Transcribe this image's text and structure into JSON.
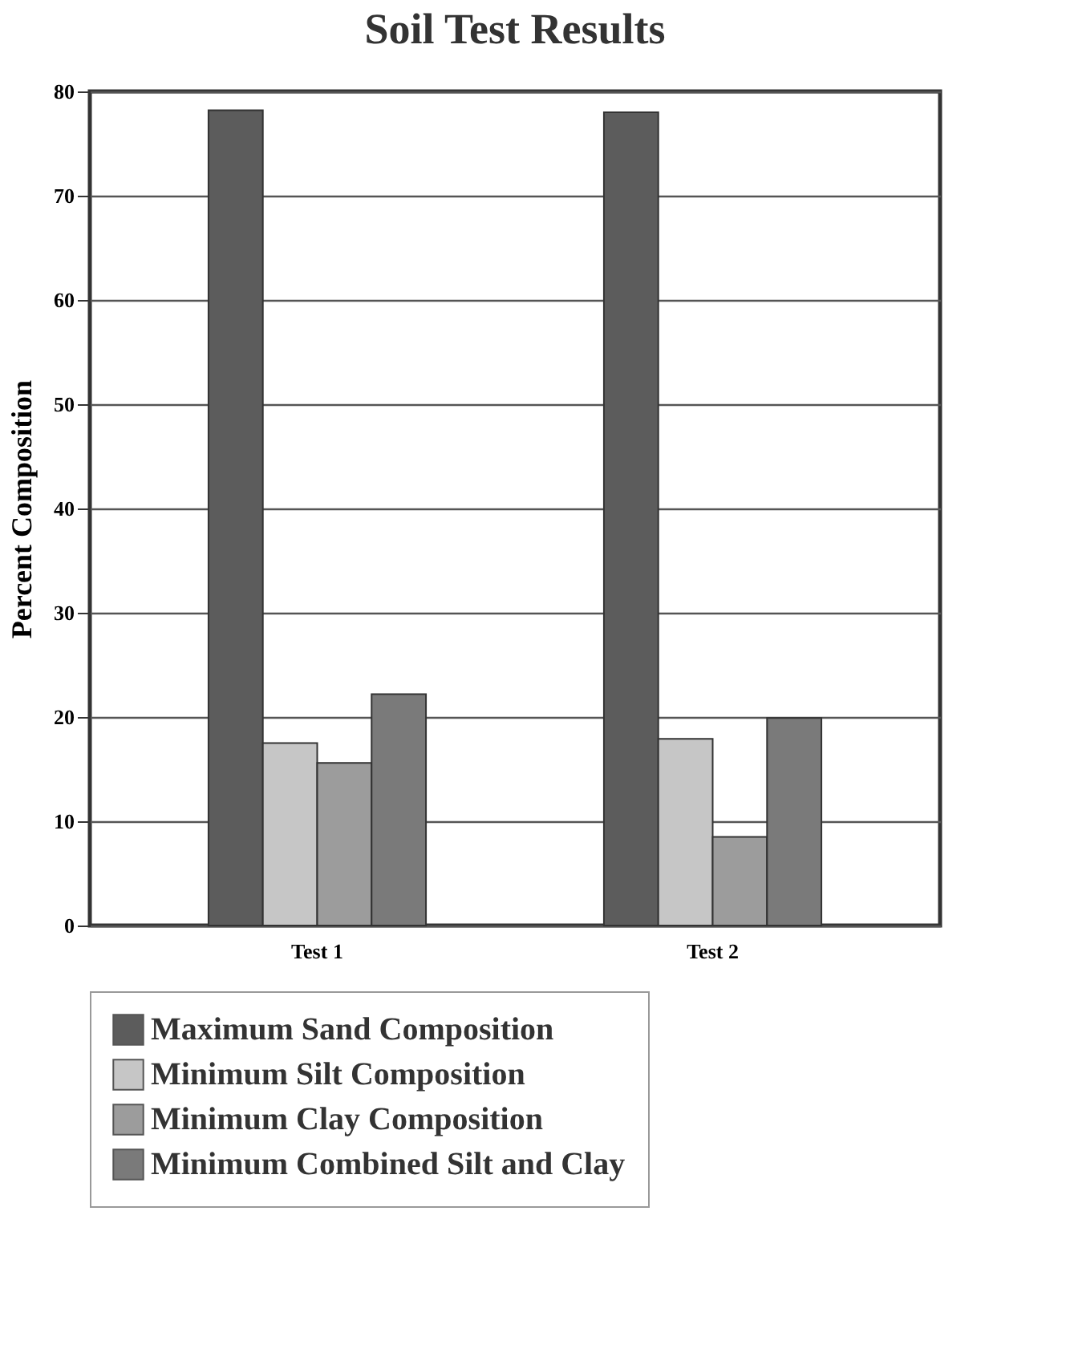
{
  "chart_data": {
    "type": "bar",
    "title": "Soil Test Results",
    "ylabel": "Percent Composition",
    "categories": [
      "Test 1",
      "Test 2"
    ],
    "series": [
      {
        "name": "Maximum Sand Composition",
        "color": "#5c5c5c",
        "values": [
          78.2,
          78.0
        ]
      },
      {
        "name": "Minimum Silt Composition",
        "color": "#c6c6c6",
        "values": [
          17.5,
          17.9
        ]
      },
      {
        "name": "Minimum Clay Composition",
        "color": "#9c9c9c",
        "values": [
          15.6,
          8.5
        ]
      },
      {
        "name": "Minimum Combined Silt and Clay",
        "color": "#7a7a7a",
        "values": [
          22.2,
          19.9
        ]
      }
    ],
    "ylim": [
      0,
      80
    ],
    "yticks": [
      0,
      10,
      20,
      30,
      40,
      50,
      60,
      70,
      80
    ],
    "grid": "y",
    "legend": "bottom"
  }
}
